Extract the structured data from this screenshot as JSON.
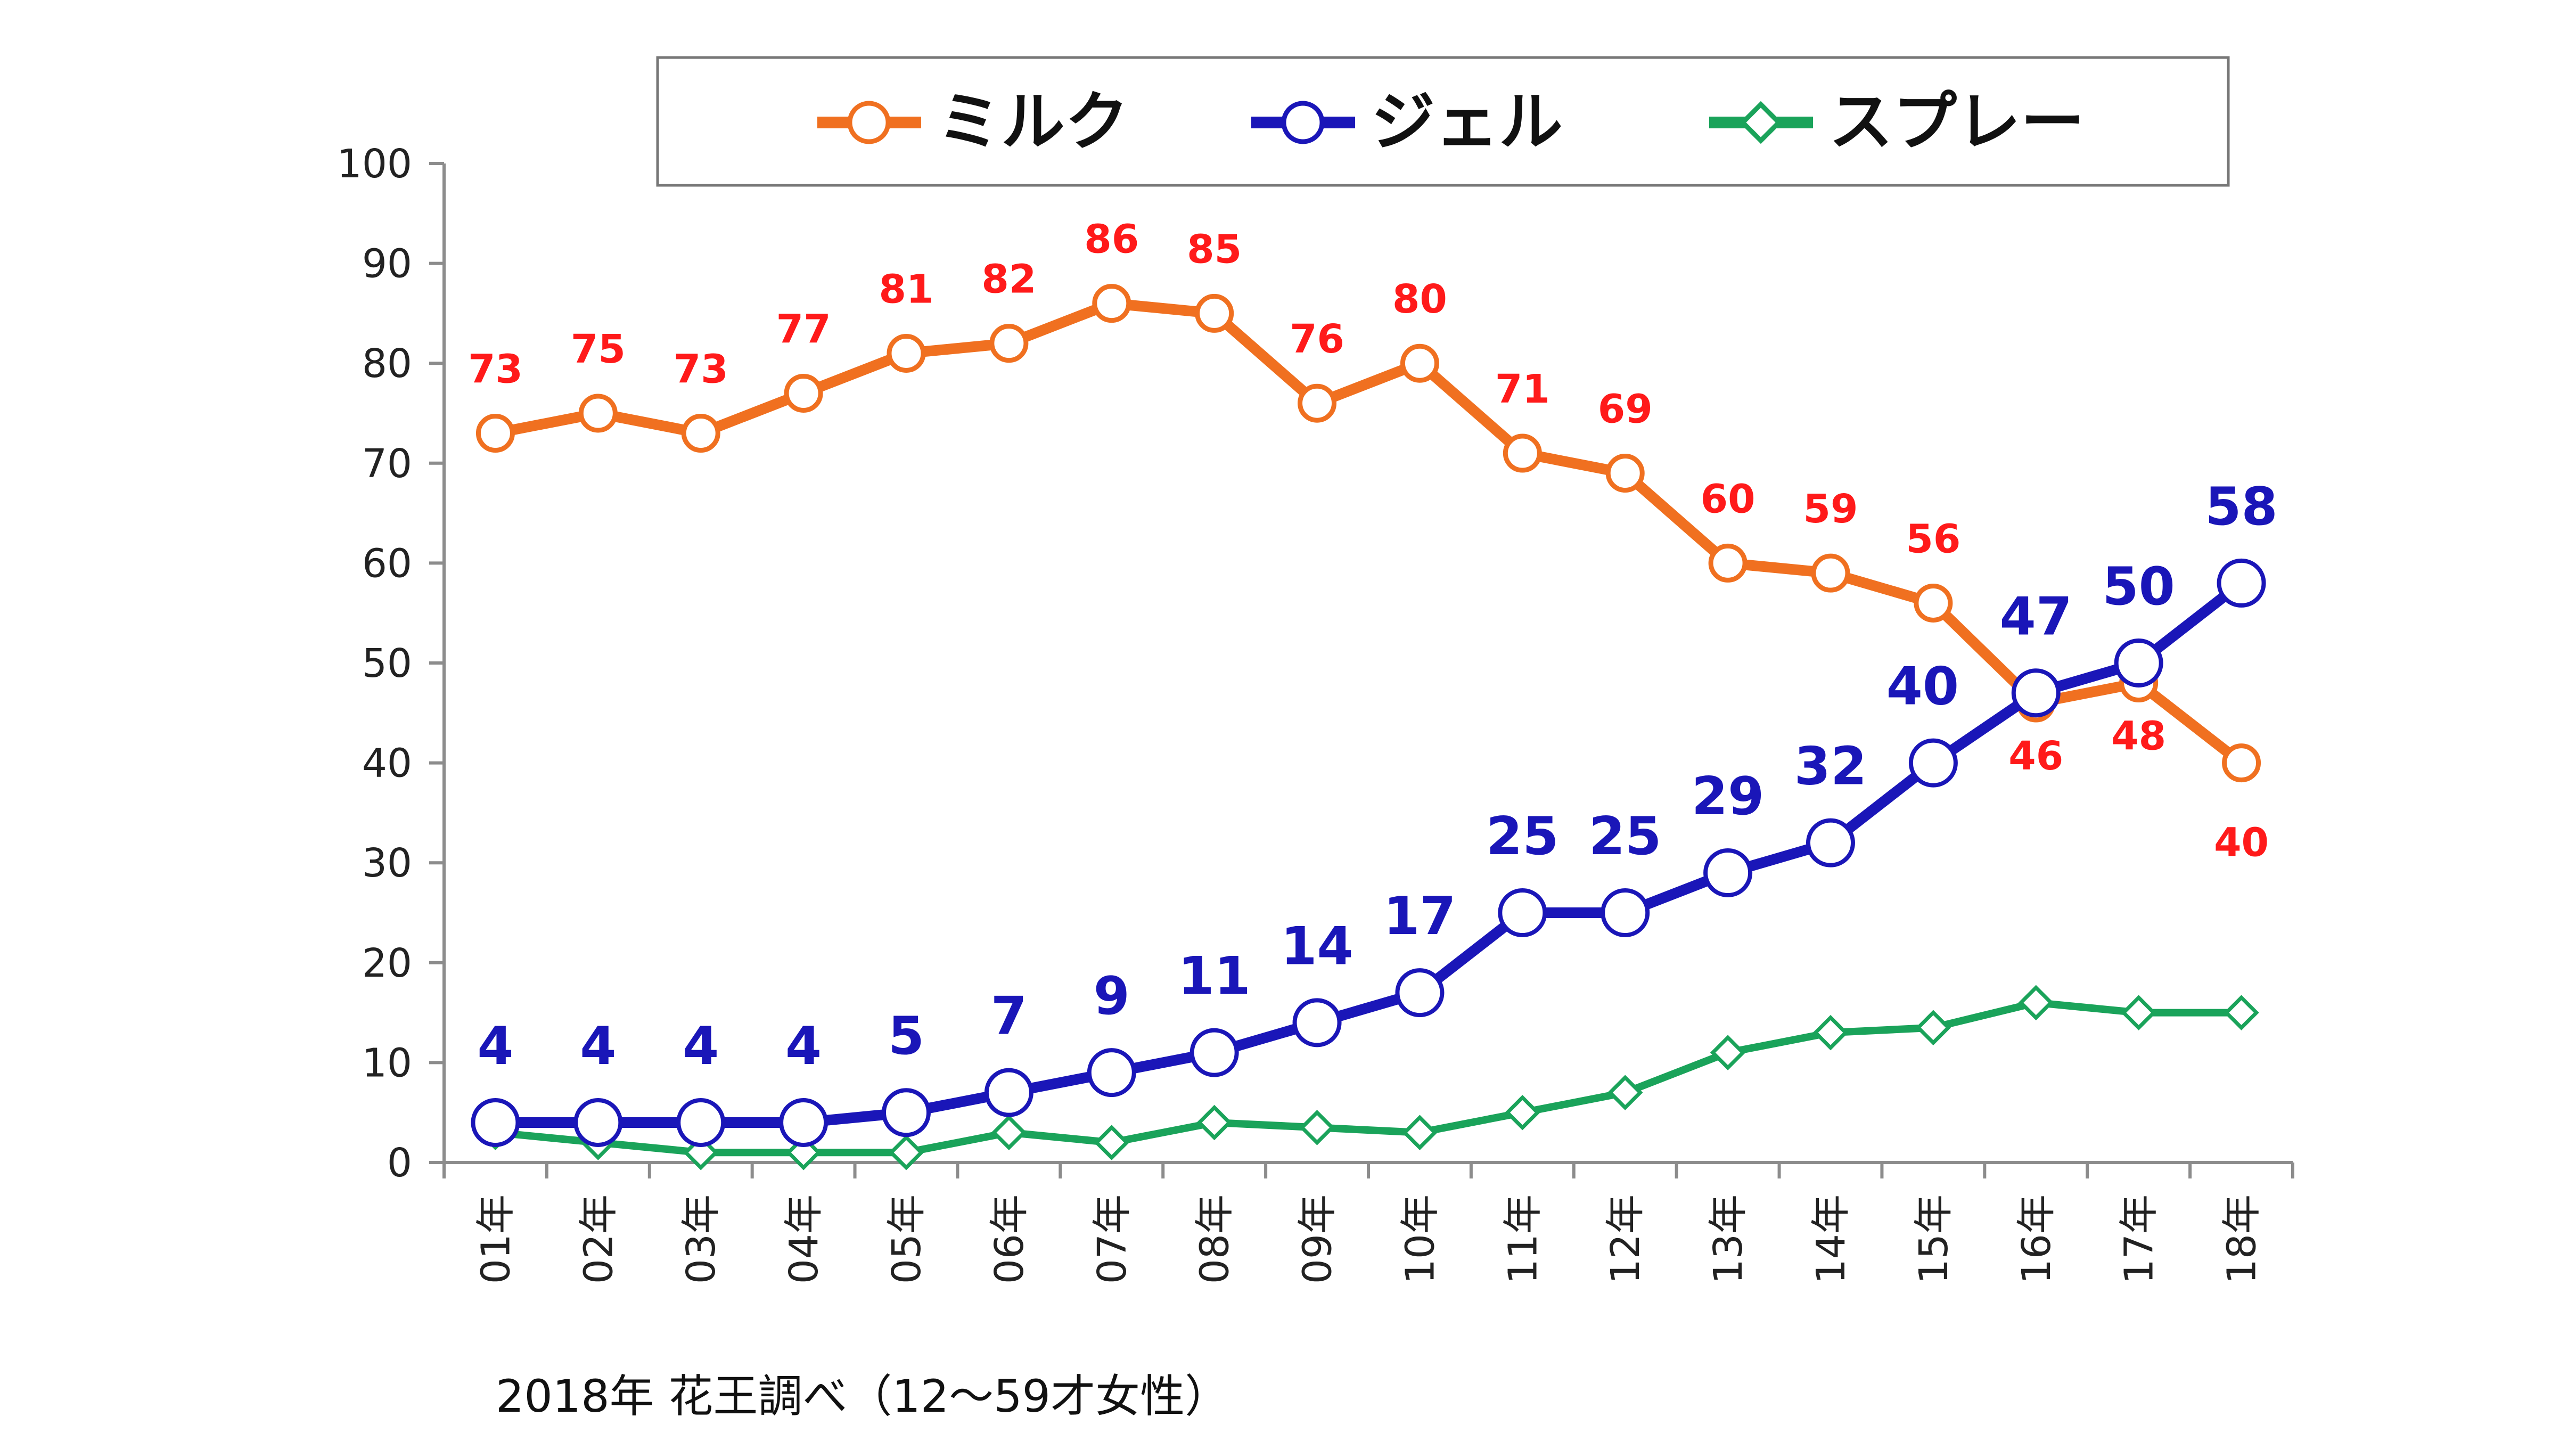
{
  "colors": {
    "milk": "#F07020",
    "milk_label": "#FF1A1A",
    "gel": "#1A16B8",
    "spray": "#1AA35A",
    "axis": "#8C8C8C"
  },
  "source_note": "2018年 花王調べ（12～59才女性）",
  "chart_data": {
    "type": "line",
    "title": "",
    "xlabel": "",
    "ylabel": "",
    "ylim": [
      0,
      100
    ],
    "yticks": [
      "0",
      "10",
      "20",
      "30",
      "40",
      "50",
      "60",
      "70",
      "80",
      "90",
      "100"
    ],
    "grid": false,
    "legend": "top",
    "categories": [
      "01年",
      "02年",
      "03年",
      "04年",
      "05年",
      "06年",
      "07年",
      "08年",
      "09年",
      "10年",
      "11年",
      "12年",
      "13年",
      "14年",
      "15年",
      "16年",
      "17年",
      "18年"
    ],
    "series": [
      {
        "name": "ミルク",
        "key": "milk",
        "marker": "circle",
        "values": [
          73,
          75,
          73,
          77,
          81,
          82,
          86,
          85,
          76,
          80,
          71,
          69,
          60,
          59,
          56,
          46,
          48,
          40
        ],
        "labels": [
          "73",
          "75",
          "73",
          "77",
          "81",
          "82",
          "86",
          "85",
          "76",
          "80",
          "71",
          "69",
          "60",
          "59",
          "56",
          "46",
          "48",
          "40"
        ]
      },
      {
        "name": "ジェル",
        "key": "gel",
        "marker": "circle",
        "values": [
          4,
          4,
          4,
          4,
          5,
          7,
          9,
          11,
          14,
          17,
          25,
          25,
          29,
          32,
          40,
          47,
          50,
          58
        ],
        "labels": [
          "4",
          "4",
          "4",
          "4",
          "5",
          "7",
          "9",
          "11",
          "14",
          "17",
          "25",
          "25",
          "29",
          "32",
          "40",
          "47",
          "50",
          "58"
        ]
      },
      {
        "name": "スプレー",
        "key": "spray",
        "marker": "diamond",
        "values": [
          3,
          2,
          1,
          1,
          1,
          3,
          2,
          4,
          3.5,
          3,
          5,
          7,
          11,
          13,
          13.5,
          16,
          15,
          15
        ]
      }
    ]
  }
}
